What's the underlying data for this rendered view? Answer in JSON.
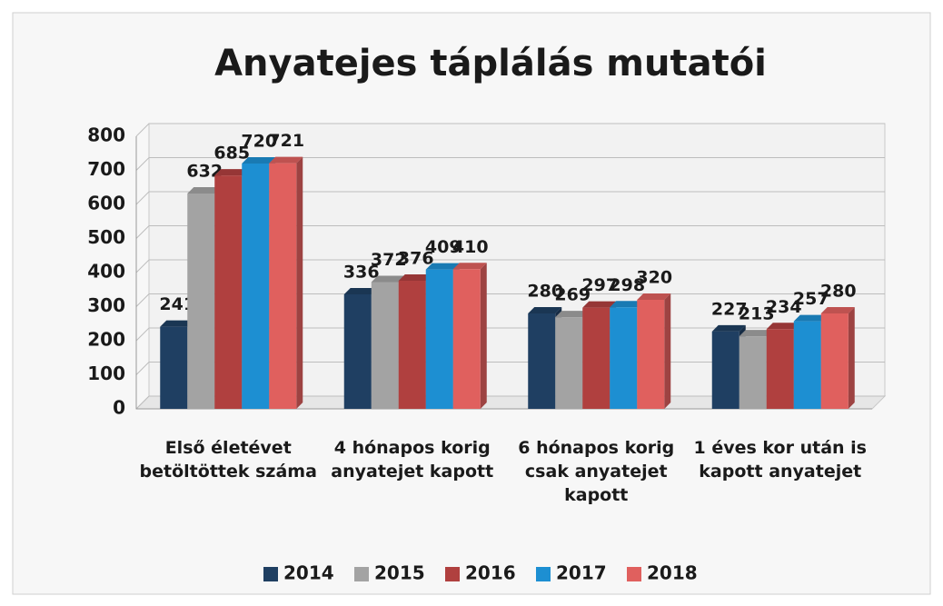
{
  "chart_data": {
    "type": "bar3d",
    "title": "Anyatejes táplálás mutatói",
    "categories": [
      "Első életévet betöltöttek száma",
      "4 hónapos korig anyatejet kapott",
      "6 hónapos korig csak anyatejet kapott",
      "1 éves kor után is kapott anyatejet"
    ],
    "series": [
      {
        "name": "2014",
        "color": "#1f3f62",
        "values": [
          241,
          336,
          280,
          227
        ]
      },
      {
        "name": "2015",
        "color": "#a3a3a3",
        "values": [
          632,
          372,
          269,
          213
        ]
      },
      {
        "name": "2016",
        "color": "#b0403f",
        "values": [
          685,
          376,
          297,
          234
        ]
      },
      {
        "name": "2017",
        "color": "#1d8fd2",
        "values": [
          720,
          409,
          298,
          257
        ]
      },
      {
        "name": "2018",
        "color": "#e0605e",
        "values": [
          721,
          410,
          320,
          280
        ]
      }
    ],
    "ylim": [
      0,
      800
    ],
    "yticks": [
      0,
      100,
      200,
      300,
      400,
      500,
      600,
      700,
      800
    ],
    "grid": true,
    "legend": "bottom"
  }
}
